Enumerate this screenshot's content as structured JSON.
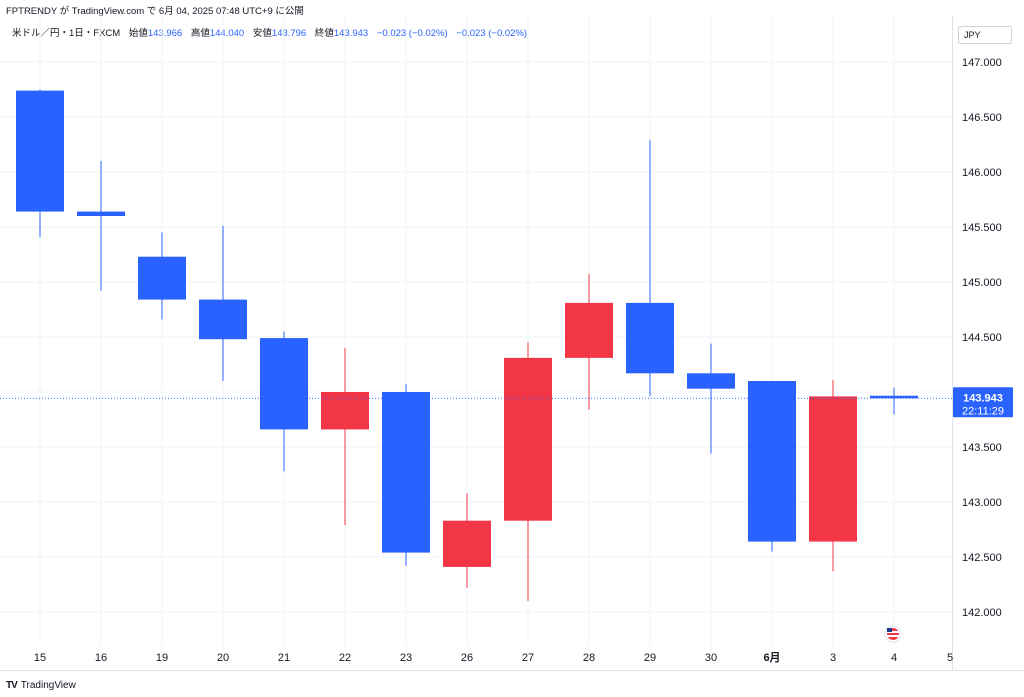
{
  "header": {
    "text": "FPTRENDY が TradingView.com で 6月 04, 2025 07:48 UTC+9 に公開"
  },
  "legend": {
    "symbol": "米ドル／円・1日・FXCM",
    "open_label": "始値",
    "open": "143.966",
    "high_label": "高値",
    "high": "144.040",
    "low_label": "安値",
    "low": "143.796",
    "close_label": "終値",
    "close": "143.943",
    "change1": "−0.023 (−0.02%)",
    "change2": "−0.023 (−0.02%)"
  },
  "currency": "JPY",
  "price_badge": {
    "price": "143.943",
    "countdown": "22:11:29"
  },
  "footer": {
    "logo": "TV",
    "brand": "TradingView"
  },
  "colors": {
    "up": "#f23645",
    "down": "#2962ff",
    "grid": "#f0f3fa",
    "axis_text": "#131722",
    "last_price_line": "#2962ff"
  },
  "chart_data": {
    "type": "candlestick",
    "y_axis": {
      "min": 141.7,
      "max": 147.2,
      "ticks": [
        "142.000",
        "142.500",
        "143.000",
        "143.500",
        "144.000",
        "144.500",
        "145.000",
        "145.500",
        "146.000",
        "146.500",
        "147.000"
      ],
      "position": "right"
    },
    "x_labels": [
      "15",
      "16",
      "19",
      "20",
      "21",
      "22",
      "23",
      "26",
      "27",
      "28",
      "29",
      "30",
      "6月",
      "3",
      "4",
      "5"
    ],
    "bold_labels": [
      "6月"
    ],
    "grid": true,
    "last_price": 143.943,
    "candles": [
      {
        "date": "15",
        "open": 146.74,
        "high": 146.75,
        "low": 145.41,
        "close": 145.64
      },
      {
        "date": "16",
        "open": 145.64,
        "high": 146.1,
        "low": 144.92,
        "close": 145.6
      },
      {
        "date": "19",
        "open": 145.23,
        "high": 145.45,
        "low": 144.66,
        "close": 144.84
      },
      {
        "date": "20",
        "open": 144.84,
        "high": 145.51,
        "low": 144.1,
        "close": 144.48
      },
      {
        "date": "21",
        "open": 144.49,
        "high": 144.55,
        "low": 143.28,
        "close": 143.66
      },
      {
        "date": "22",
        "open": 143.66,
        "high": 144.4,
        "low": 142.79,
        "close": 144.0
      },
      {
        "date": "23",
        "open": 144.0,
        "high": 144.07,
        "low": 142.42,
        "close": 142.54
      },
      {
        "date": "26",
        "open": 142.41,
        "high": 143.08,
        "low": 142.22,
        "close": 142.83
      },
      {
        "date": "27",
        "open": 142.83,
        "high": 144.45,
        "low": 142.1,
        "close": 144.31
      },
      {
        "date": "28",
        "open": 144.31,
        "high": 145.07,
        "low": 143.84,
        "close": 144.81
      },
      {
        "date": "29",
        "open": 144.81,
        "high": 146.29,
        "low": 143.96,
        "close": 144.17
      },
      {
        "date": "30",
        "open": 144.17,
        "high": 144.44,
        "low": 143.44,
        "close": 144.03
      },
      {
        "date": "6月",
        "open": 144.1,
        "high": 144.1,
        "low": 142.55,
        "close": 142.64
      },
      {
        "date": "3",
        "open": 142.64,
        "high": 144.11,
        "low": 142.37,
        "close": 143.96
      },
      {
        "date": "4",
        "open": 143.966,
        "high": 144.04,
        "low": 143.796,
        "close": 143.943
      }
    ]
  }
}
